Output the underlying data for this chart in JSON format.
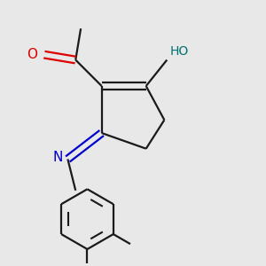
{
  "background_color": "#e8e8e8",
  "bond_color": "#1a1a1a",
  "oxygen_color": "#dd0000",
  "nitrogen_color": "#0000cc",
  "oh_color": "#007070",
  "line_width": 1.6,
  "dbo": 0.012,
  "figsize": [
    3.0,
    3.0
  ],
  "dpi": 100,
  "o_text": "O",
  "n_text": "N",
  "ho_text": "HO"
}
